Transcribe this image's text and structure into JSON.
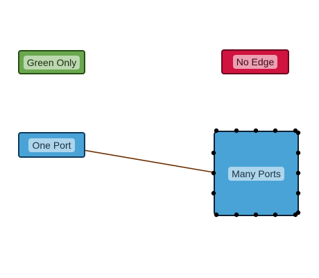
{
  "diagram": {
    "nodes": {
      "green_only": {
        "label": "Green Only",
        "fill": "#6aa84f",
        "stroke": "#274e13"
      },
      "no_edge": {
        "label": "No Edge",
        "fill": "#d0143f",
        "stroke": "#6a0a1f"
      },
      "one_port": {
        "label": "One Port",
        "fill": "#4aa3d6",
        "stroke": "#0d3b5c"
      },
      "many_ports": {
        "label": "Many Ports",
        "fill": "#4aa3d6",
        "stroke": "#0d2033"
      }
    },
    "edges": [
      {
        "from": "many_ports",
        "to": "one_port",
        "color": "#6b2e00",
        "arrow": "end"
      }
    ],
    "port_color": "#000000"
  }
}
